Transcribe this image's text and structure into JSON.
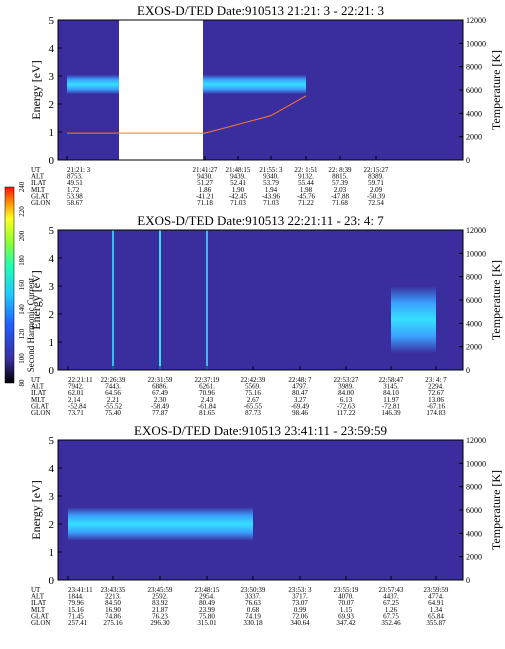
{
  "colors": {
    "background": "#3a2e9e",
    "spectrogram_bright": "#35e0ff",
    "spectrogram_mid": "#3aa0ff",
    "temperature_trace": "#ff7a2a",
    "white_gap": "#ffffff"
  },
  "colorbar": {
    "label": "Second Harmonic Current",
    "ticks": [
      "80",
      "100",
      "120",
      "140",
      "160",
      "180",
      "200",
      "220",
      "240"
    ],
    "range": [
      80,
      240
    ]
  },
  "chart_data": [
    {
      "type": "heatmap",
      "title": "EXOS-D/TED    Date:910513  21:21: 3 - 22:21: 3",
      "ylabel": "Energy [eV]",
      "y2label": "Temperature [K]",
      "ylim": [
        0,
        5
      ],
      "y_ticks": [
        "0",
        "1",
        "2",
        "3",
        "4",
        "5"
      ],
      "y2lim": [
        0,
        12000
      ],
      "y2_ticks": [
        "0",
        "2000",
        "4000",
        "6000",
        "8000",
        "10000",
        "12000"
      ],
      "row_labels": [
        "UT",
        "ALT",
        "ILAT",
        "MLT",
        "GLAT",
        "GLON"
      ],
      "columns": [
        [
          "21:21: 3",
          "8753.",
          "49.51",
          "1.72",
          "53.98",
          "58.67"
        ],
        [
          "21:41:27",
          "9430.",
          "51.27",
          "1.86",
          "-41.21",
          "71.18"
        ],
        [
          "21:48:15",
          "9439.",
          "52.41",
          "1.90",
          "-42.45",
          "71.03"
        ],
        [
          "21:55: 3",
          "9340.",
          "53.79",
          "1.94",
          "-43.96",
          "71.03"
        ],
        [
          "22: 1:51",
          "9132.",
          "55.44",
          "1.98",
          "-45.76",
          "71.22"
        ],
        [
          "22: 8:39",
          "8815.",
          "57.39",
          "2.03",
          "-47.88",
          "71.68"
        ],
        [
          "22:15:27",
          "8389.",
          "59.71",
          "2.09",
          "-50.39",
          "72.54"
        ]
      ],
      "data_gap": [
        "21:21: 3",
        "21:41:27"
      ],
      "bands": [
        {
          "x_range": [
            "21:21: 3",
            "22: 1:51"
          ],
          "energy_center": 2.7,
          "energy_halfwidth": 0.35
        }
      ],
      "temperature_trace": {
        "x": [
          "21:21: 3",
          "21:41:27",
          "21:55: 3",
          "22: 1:51"
        ],
        "temperature_K": [
          2300,
          2300,
          3800,
          5500
        ]
      }
    },
    {
      "type": "heatmap",
      "title": "EXOS-D/TED    Date:910513  22:21:11 - 23: 4: 7",
      "ylabel": "Energy [eV]",
      "y2label": "Temperature [K]",
      "ylim": [
        0,
        5
      ],
      "y_ticks": [
        "0",
        "1",
        "2",
        "3",
        "4",
        "5"
      ],
      "y2lim": [
        0,
        12000
      ],
      "y2_ticks": [
        "0",
        "2000",
        "4000",
        "6000",
        "8000",
        "10000",
        "12000"
      ],
      "row_labels": [
        "UT",
        "ALT",
        "ILAT",
        "MLT",
        "GLAT",
        "GLON"
      ],
      "columns": [
        [
          "22:21:11",
          "7942.",
          "62.01",
          "2.14",
          "-52.84",
          "73.71"
        ],
        [
          "22:26:39",
          "7443.",
          "64.56",
          "2.21",
          "-55.52",
          "75.40"
        ],
        [
          "22:31:59",
          "6886.",
          "67.49",
          "2.30",
          "-58.49",
          "77.87"
        ],
        [
          "22:37:19",
          "6261.",
          "70.96",
          "2.43",
          "-61.84",
          "81.65"
        ],
        [
          "22:42:39",
          "5569.",
          "75.16",
          "2.67",
          "-65.55",
          "87.73"
        ],
        [
          "22:48: 7",
          "4797.",
          "80.47",
          "3.27",
          "-69.49",
          "98.46"
        ],
        [
          "22:53:27",
          "3989.",
          "84.00",
          "6.13",
          "-72.63",
          "117.22"
        ],
        [
          "22:58:47",
          "3145.",
          "84.10",
          "11.97",
          "-72.81",
          "146.39"
        ],
        [
          "23: 4: 7",
          "2294.",
          "72.67",
          "13.06",
          "-67.16",
          "174.83"
        ]
      ],
      "vertical_spikes": [
        "22:31:59",
        "22:26:39",
        "22:37:19"
      ],
      "bands": [
        {
          "x_range": [
            "22:58:47",
            "23: 4: 7"
          ],
          "energy_center": 1.8,
          "energy_halfwidth": 1.2
        }
      ]
    },
    {
      "type": "heatmap",
      "title": "EXOS-D/TED    Date:910513  23:41:11 - 23:59:59",
      "ylabel": "Energy [eV]",
      "y2label": "Temperature [K]",
      "ylim": [
        0,
        5
      ],
      "y_ticks": [
        "0",
        "1",
        "2",
        "3",
        "4",
        "5"
      ],
      "y2lim": [
        0,
        12000
      ],
      "y2_ticks": [
        "0",
        "2000",
        "4000",
        "6000",
        "8000",
        "10000",
        "12000"
      ],
      "row_labels": [
        "UT",
        "ALT",
        "ILAT",
        "MLT",
        "GLAT",
        "GLON"
      ],
      "columns": [
        [
          "23:41:11",
          "1844.",
          "79.96",
          "15.16",
          "71.45",
          "257.41"
        ],
        [
          "23:43:35",
          "2213.",
          "84.50",
          "16.90",
          "74.86",
          "275.16"
        ],
        [
          "23:45:59",
          "2592.",
          "83.92",
          "21.87",
          "76.23",
          "296.30"
        ],
        [
          "23:48:15",
          "2954.",
          "80.49",
          "23.99",
          "75.80",
          "315.01"
        ],
        [
          "23:50:39",
          "3337.",
          "76.63",
          "0.68",
          "74.19",
          "330.18"
        ],
        [
          "23:53: 3",
          "3717.",
          "73.07",
          "0.99",
          "72.06",
          "340.64"
        ],
        [
          "23:55:19",
          "4070.",
          "70.07",
          "1.15",
          "69.93",
          "347.42"
        ],
        [
          "23:57:43",
          "4437.",
          "67.25",
          "1.26",
          "67.75",
          "352.46"
        ],
        [
          "23:59:59",
          "4774.",
          "64.91",
          "1.34",
          "65.84",
          "355.87"
        ]
      ],
      "bands": [
        {
          "x_range": [
            "23:41:11",
            "23:50:39"
          ],
          "energy_center": 2.0,
          "energy_halfwidth": 0.6
        }
      ]
    }
  ]
}
